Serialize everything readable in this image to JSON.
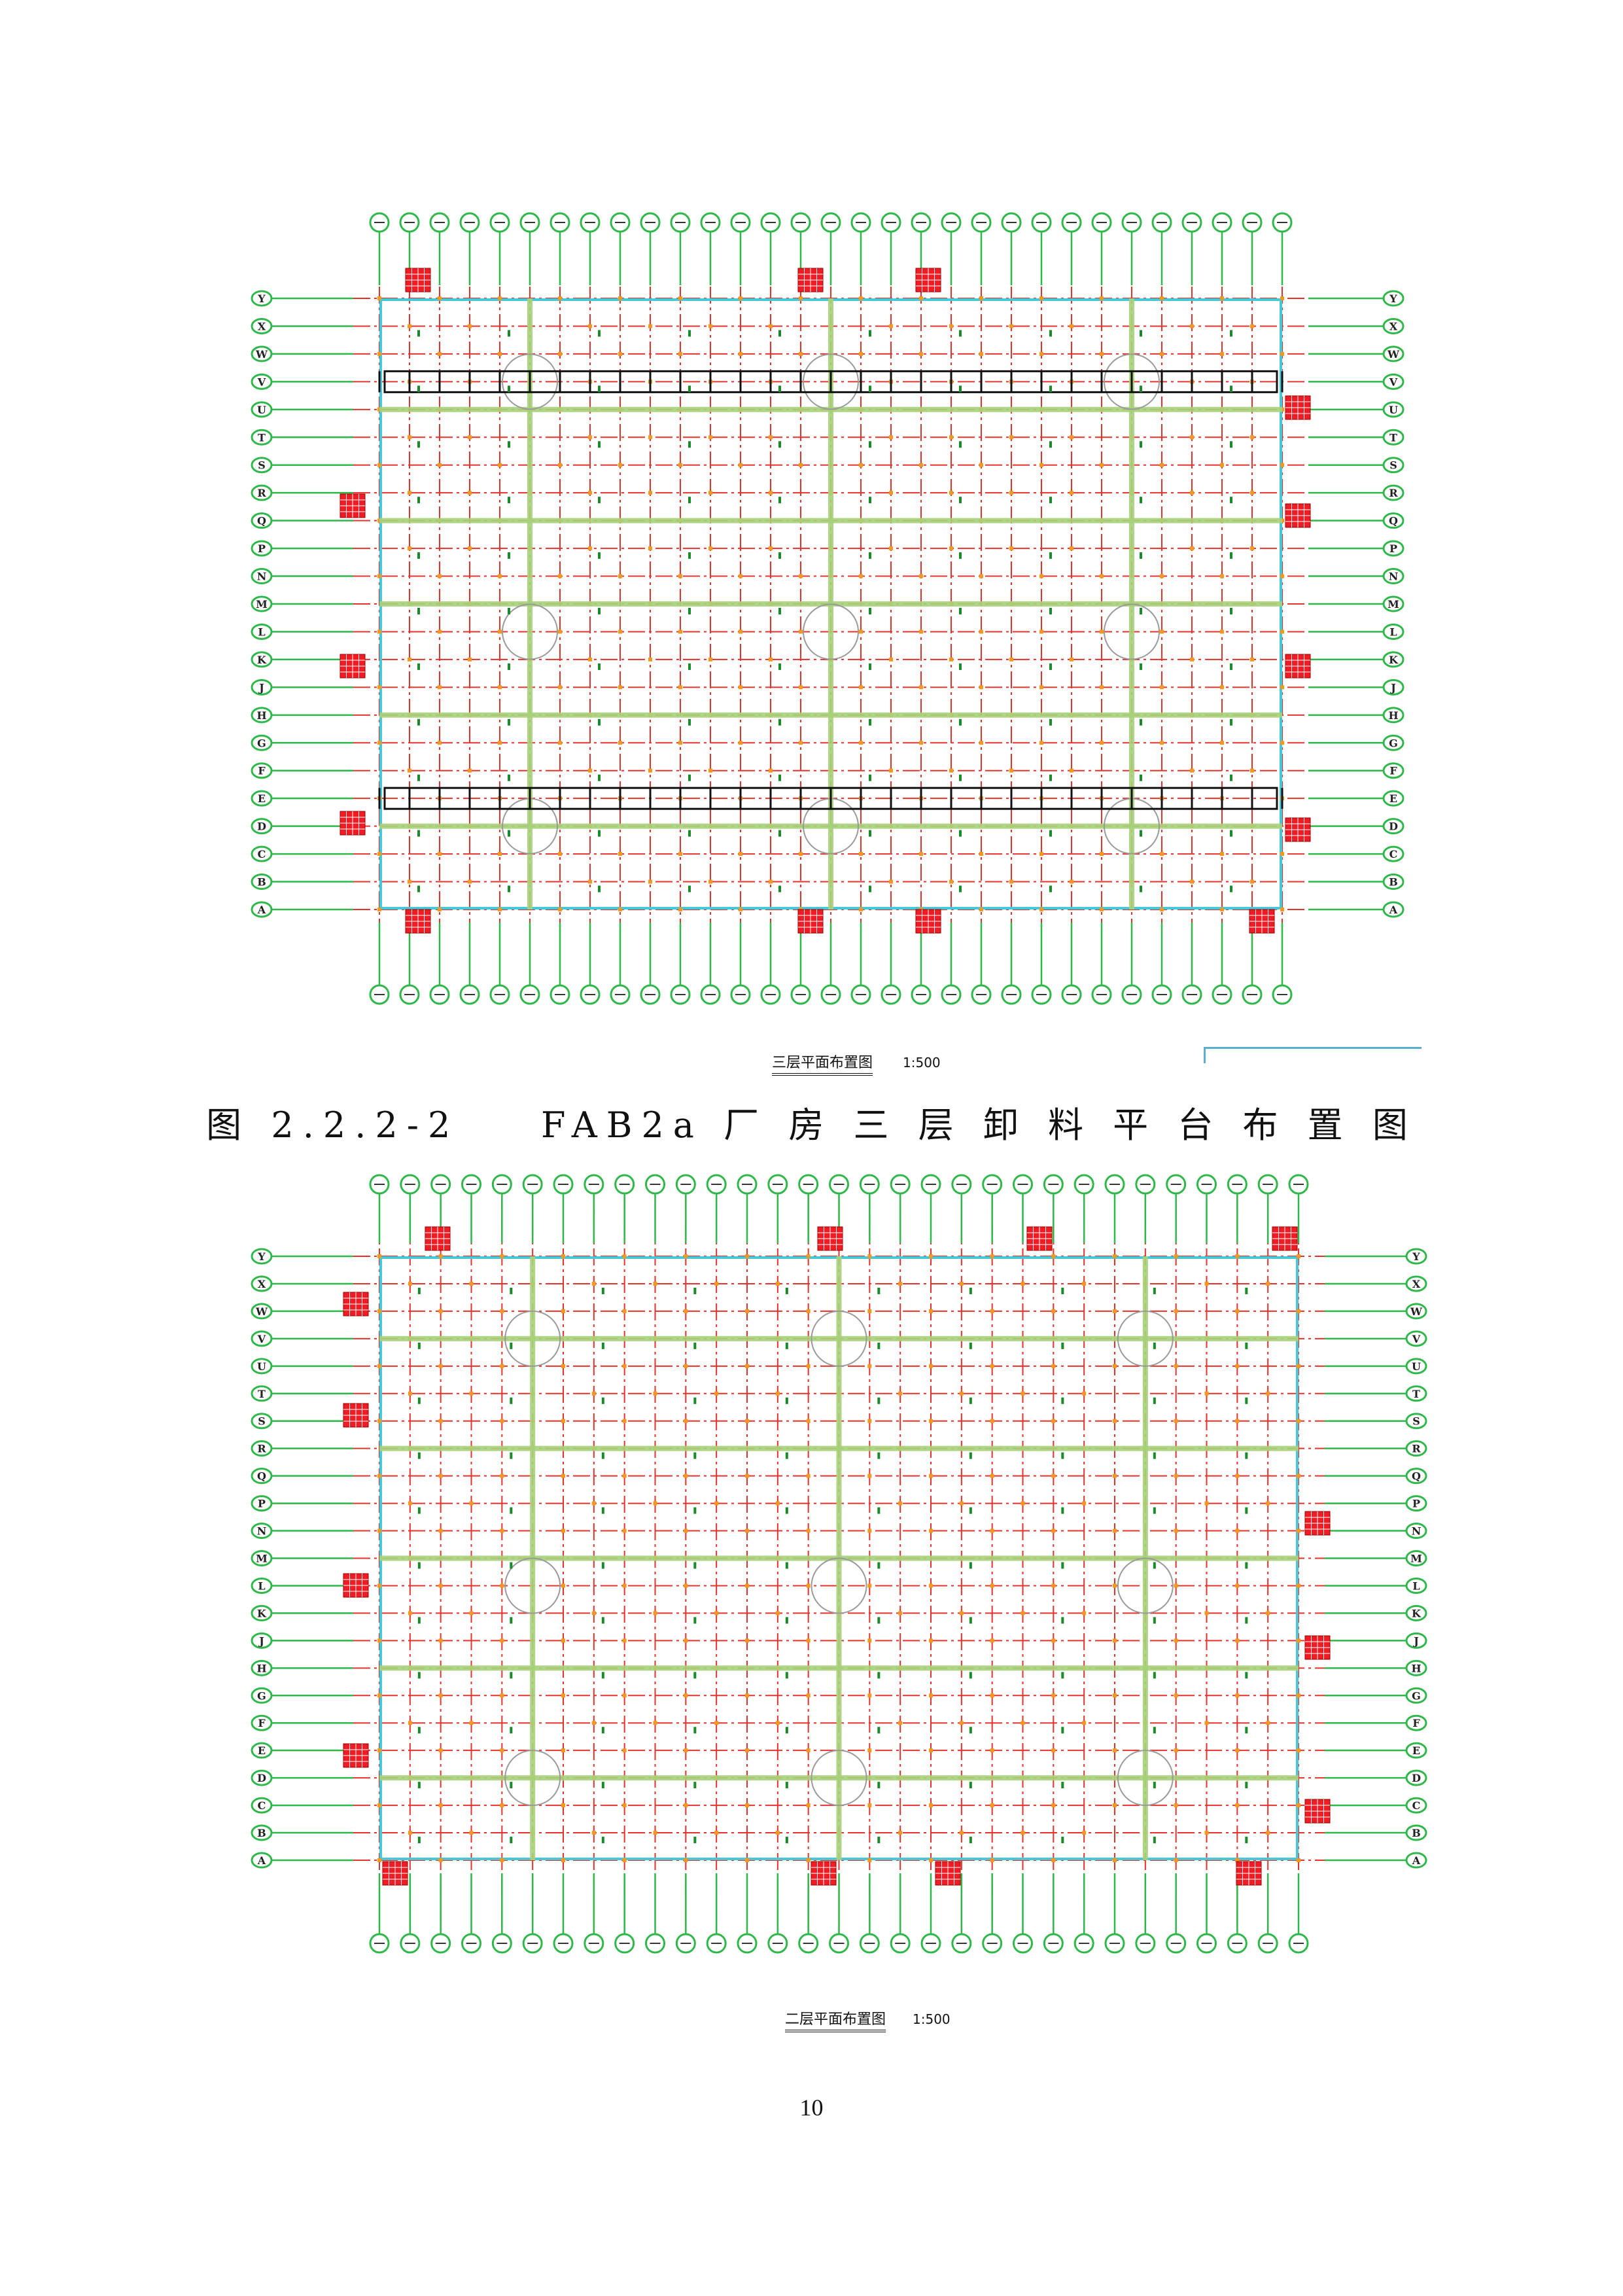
{
  "caption": "图 2.2.2-2    FAB2a 厂 房 三 层 卸 料 平 台 布 置 图",
  "page_number": "10",
  "plans": [
    {
      "title": "三层平面布置图",
      "scale": "1:500",
      "row_labels": [
        "Y",
        "X",
        "W",
        "V",
        "U",
        "T",
        "S",
        "R",
        "Q",
        "P",
        "N",
        "M",
        "L",
        "K",
        "J",
        "H",
        "G",
        "F",
        "E",
        "D",
        "C",
        "B",
        "A"
      ],
      "column_count": 31
    },
    {
      "title": "二层平面布置图",
      "scale": "1:500",
      "row_labels": [
        "Y",
        "X",
        "W",
        "V",
        "U",
        "T",
        "S",
        "R",
        "Q",
        "P",
        "N",
        "M",
        "L",
        "K",
        "J",
        "H",
        "G",
        "F",
        "E",
        "D",
        "C",
        "B",
        "A"
      ],
      "column_count": 31
    }
  ],
  "colors": {
    "grid_red": "#e5322d",
    "axis_green": "#2fb84a",
    "beam_green": "#a6d27a",
    "outline_cyan": "#46c8d8",
    "room_red": "#ee1c24",
    "marker_orange": "#f39a1e"
  }
}
